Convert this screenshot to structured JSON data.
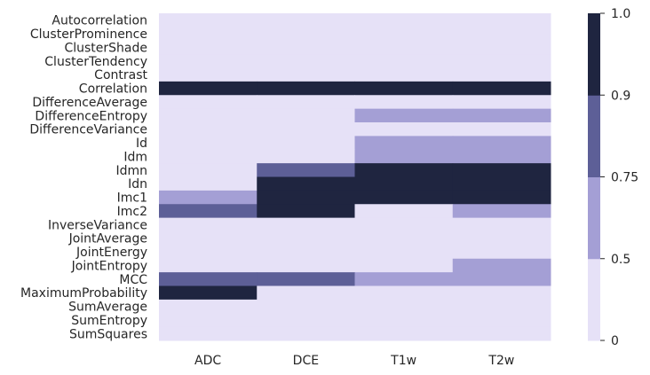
{
  "chart_data": {
    "type": "heatmap",
    "title": "",
    "xlabel": "",
    "ylabel": "",
    "x": [
      "ADC",
      "DCE",
      "T1w",
      "T2w"
    ],
    "y": [
      "Autocorrelation",
      "ClusterProminence",
      "ClusterShade",
      "ClusterTendency",
      "Contrast",
      "Correlation",
      "DifferenceAverage",
      "DifferenceEntropy",
      "DifferenceVariance",
      "Id",
      "Idm",
      "Idmn",
      "Idn",
      "Imc1",
      "Imc2",
      "InverseVariance",
      "JointAverage",
      "JointEnergy",
      "JointEntropy",
      "MCC",
      "MaximumProbability",
      "SumAverage",
      "SumEntropy",
      "SumSquares"
    ],
    "values": [
      [
        0.25,
        0.25,
        0.25,
        0.25
      ],
      [
        0.25,
        0.25,
        0.25,
        0.25
      ],
      [
        0.25,
        0.25,
        0.25,
        0.25
      ],
      [
        0.25,
        0.25,
        0.25,
        0.25
      ],
      [
        0.25,
        0.25,
        0.25,
        0.25
      ],
      [
        0.95,
        0.95,
        0.95,
        0.95
      ],
      [
        0.25,
        0.25,
        0.25,
        0.25
      ],
      [
        0.25,
        0.25,
        0.6,
        0.6
      ],
      [
        0.25,
        0.25,
        0.25,
        0.25
      ],
      [
        0.25,
        0.25,
        0.6,
        0.6
      ],
      [
        0.25,
        0.25,
        0.6,
        0.6
      ],
      [
        0.25,
        0.8,
        0.95,
        0.95
      ],
      [
        0.25,
        0.95,
        0.95,
        0.95
      ],
      [
        0.6,
        0.95,
        0.95,
        0.95
      ],
      [
        0.8,
        0.95,
        0.25,
        0.6
      ],
      [
        0.25,
        0.25,
        0.25,
        0.25
      ],
      [
        0.25,
        0.25,
        0.25,
        0.25
      ],
      [
        0.25,
        0.25,
        0.25,
        0.25
      ],
      [
        0.25,
        0.25,
        0.25,
        0.6
      ],
      [
        0.8,
        0.8,
        0.6,
        0.6
      ],
      [
        0.95,
        0.25,
        0.25,
        0.25
      ],
      [
        0.25,
        0.25,
        0.25,
        0.25
      ],
      [
        0.25,
        0.25,
        0.25,
        0.25
      ],
      [
        0.25,
        0.25,
        0.25,
        0.25
      ]
    ],
    "colorbar": {
      "bounds": [
        0,
        0.5,
        0.75,
        0.9,
        1.0
      ],
      "tick_labels": [
        "0",
        "0.5",
        "0.75",
        "0.9",
        "1.0"
      ],
      "colors": [
        "#e6e1f7",
        "#a49fd5",
        "#5d5f97",
        "#1f2540"
      ]
    },
    "grid": false
  }
}
